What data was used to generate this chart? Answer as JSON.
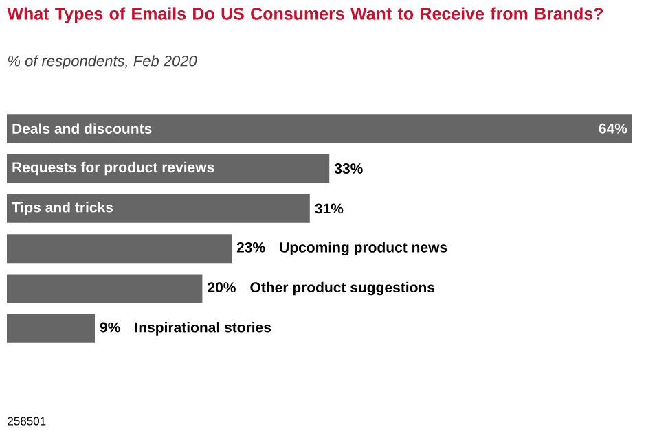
{
  "chart_data": {
    "type": "bar",
    "orientation": "horizontal",
    "title": "What Types of Emails Do US Consumers Want to Receive from Brands?",
    "subtitle": "% of respondents, Feb 2020",
    "categories": [
      "Deals and discounts",
      "Requests for product reviews",
      "Tips and tricks",
      "Upcoming product news",
      "Other product suggestions",
      "Inspirational stories"
    ],
    "values": [
      64,
      33,
      31,
      23,
      20,
      9
    ],
    "value_labels": [
      "64%",
      "33%",
      "31%",
      "23%",
      "20%",
      "9%"
    ],
    "color": "#666666",
    "annotations": [
      "258501"
    ]
  }
}
